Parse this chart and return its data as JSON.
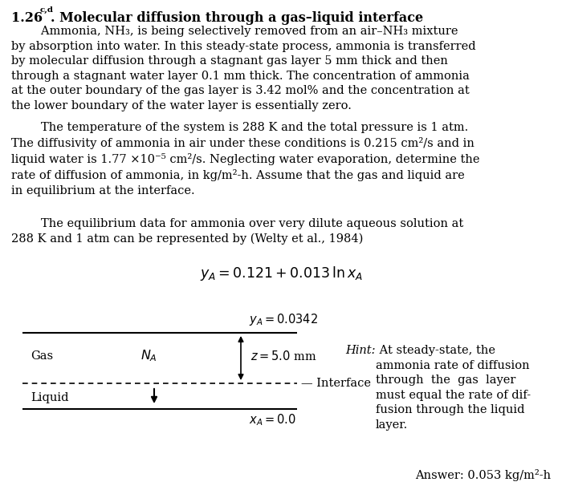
{
  "title_bold": "1.26",
  "title_super": "c,d",
  "title_rest": ". Molecular diffusion through a gas–liquid interface",
  "para1_indent": "        Ammonia, NH",
  "para1_sub": "3",
  "para1_cont": ", is being selectively removed from an air–NH",
  "para1_sub2": "3",
  "para1_end": " mixture\nby absorption into water. In this steady-state process, ammonia is transferred\nby molecular diffusion through a stagnant gas layer 5 mm thick and then\nthrough a stagnant water layer 0.1 mm thick. The concentration of ammonia\nat the outer boundary of the gas layer is 3.42 mol% and the concentration at\nthe lower boundary of the water layer is essentially zero.",
  "para2": "        The temperature of the system is 288 K and the total pressure is 1 atm.\nThe diffusivity of ammonia in air under these conditions is 0.215 cm²/s and in\nliquid water is 1.77 ×10⁻⁵ cm²/s. Neglecting water evaporation, determine the\nrate of diffusion of ammonia, in kg/m²-h. Assume that the gas and liquid are\nin equilibrium at the interface.",
  "para3": "        The equilibrium data for ammonia over very dilute aqueous solution at\n288 K and 1 atm can be represented by (Welty et al., 1984)",
  "equation_text": "$y_A = 0.121 + 0.013\\,\\mathrm{ln}\\,x_A$",
  "label_yA_top": "$y_A = 0.0342$",
  "label_z": "$z = 5.0$ mm",
  "label_interface": "Interface",
  "label_xA": "$x_A = 0.0$",
  "label_gas": "Gas",
  "label_liquid": "Liquid",
  "label_NA": "$N_A$",
  "hint_italic": "Hint:",
  "hint_body": " At steady-state, the\nammonia rate of diffusion\nthrough  the  gas  layer\nmust equal the rate of dif-\nfusion through the liquid\nlayer.",
  "answer": "Answer: 0.053 kg/m²-h",
  "bg_color": "#ffffff",
  "text_color": "#000000",
  "fs_body": 10.5,
  "fs_title": 11.5,
  "fs_eq": 12
}
